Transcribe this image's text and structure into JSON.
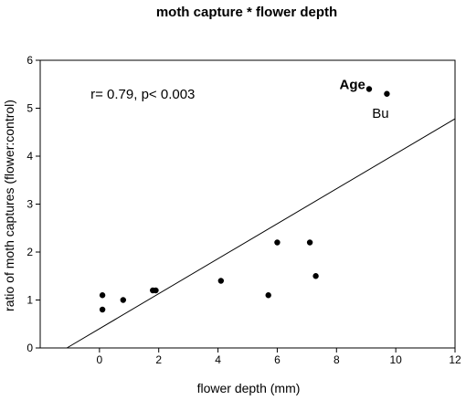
{
  "chart_data": {
    "type": "scatter",
    "title": "moth capture * flower depth",
    "xlabel": "flower depth (mm)",
    "ylabel": "ratio of moth captures (flower:control)",
    "xlim": [
      -2,
      12
    ],
    "ylim": [
      0,
      6
    ],
    "xticks": [
      0,
      2,
      4,
      6,
      8,
      10,
      12
    ],
    "yticks": [
      0,
      1,
      2,
      3,
      4,
      5,
      6
    ],
    "grid": false,
    "points": [
      {
        "x": 0.1,
        "y": 1.1
      },
      {
        "x": 0.1,
        "y": 0.8
      },
      {
        "x": 0.8,
        "y": 1.0
      },
      {
        "x": 1.8,
        "y": 1.2
      },
      {
        "x": 1.9,
        "y": 1.2
      },
      {
        "x": 4.1,
        "y": 1.4
      },
      {
        "x": 5.7,
        "y": 1.1
      },
      {
        "x": 6.0,
        "y": 2.2
      },
      {
        "x": 7.1,
        "y": 2.2
      },
      {
        "x": 7.3,
        "y": 1.5
      },
      {
        "x": 9.1,
        "y": 5.4
      },
      {
        "x": 9.7,
        "y": 5.3
      }
    ],
    "regression_line": {
      "x": [
        -1.1,
        12
      ],
      "y": [
        0,
        4.78
      ]
    },
    "annotations": [
      {
        "text": "r= 0.79, p< 0.003",
        "x": -0.3,
        "y": 5.2,
        "bold": false
      },
      {
        "text": "Age",
        "x": 8.1,
        "y": 5.4,
        "bold": true
      },
      {
        "text": "Bu",
        "x": 9.2,
        "y": 4.8,
        "bold": false
      }
    ]
  }
}
